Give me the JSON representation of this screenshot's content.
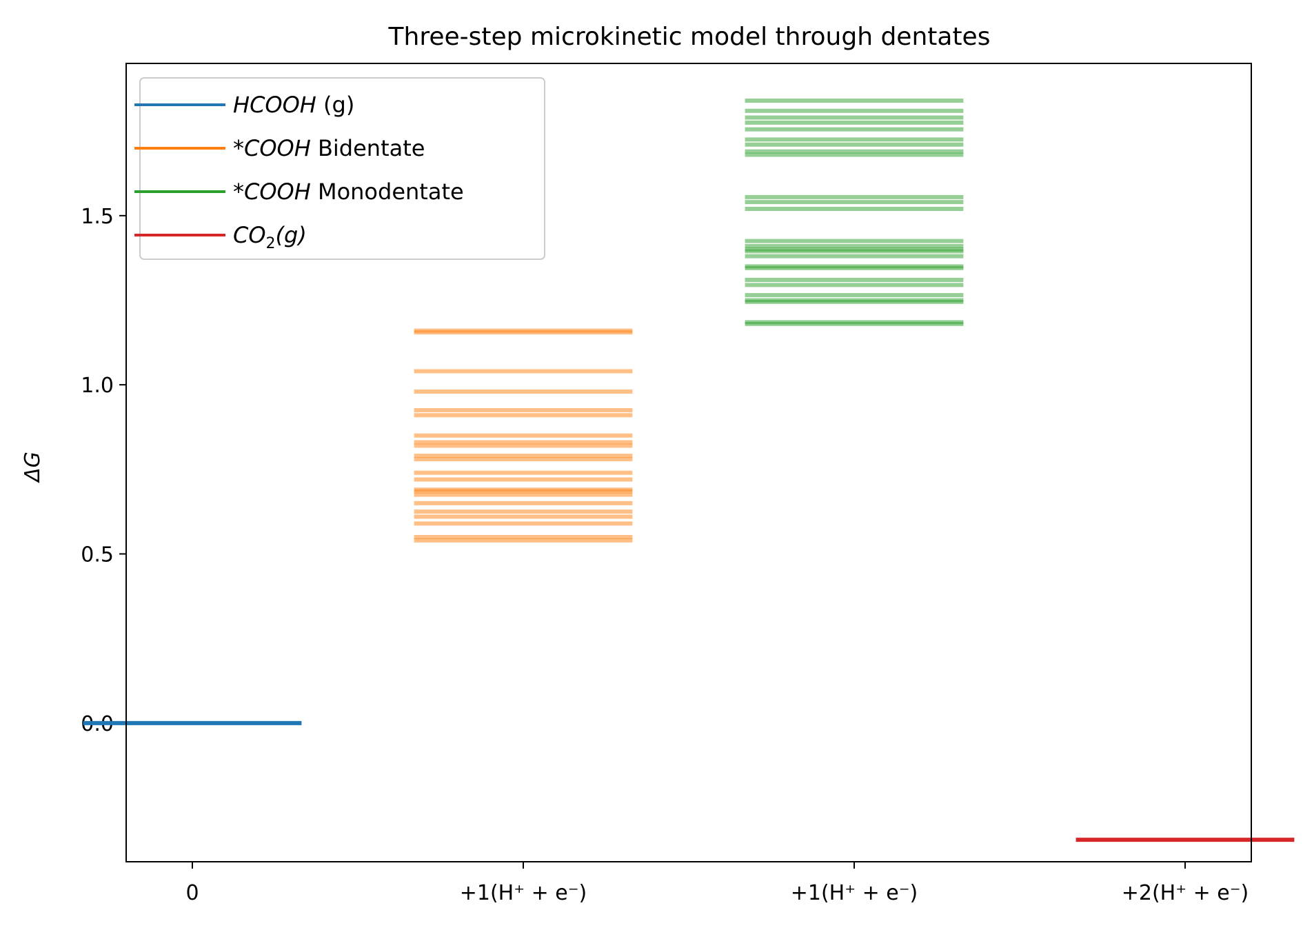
{
  "chart_data": {
    "type": "energy-level-diagram",
    "title": "Three-step microkinetic model through dentates",
    "xlabel": "",
    "ylabel": "ΔG",
    "ylim": [
      -0.41,
      1.95
    ],
    "xlim": [
      -0.2,
      3.2
    ],
    "x_ticks": [
      {
        "x": 0,
        "label": "0"
      },
      {
        "x": 1,
        "label": "+1(H⁺ + e⁻)"
      },
      {
        "x": 2,
        "label": "+1(H⁺ + e⁻)"
      },
      {
        "x": 3,
        "label": "+2(H⁺ + e⁻)"
      }
    ],
    "y_ticks": [
      0.0,
      0.5,
      1.0,
      1.5
    ],
    "y_tick_labels": [
      "0.0",
      "0.5",
      "1.0",
      "1.5"
    ],
    "legend_position": "upper-left",
    "series": [
      {
        "name": "HCOOH (g)",
        "color": "#1f77b4",
        "x": 0,
        "alpha": 1.0,
        "values": [
          0.0
        ]
      },
      {
        "name": "*COOH Bidentate",
        "color": "#ff7f0e",
        "x": 1,
        "alpha": 0.5,
        "values": [
          1.16,
          1.155,
          1.04,
          0.98,
          0.925,
          0.91,
          0.85,
          0.83,
          0.82,
          0.79,
          0.78,
          0.74,
          0.72,
          0.69,
          0.685,
          0.675,
          0.65,
          0.625,
          0.61,
          0.59,
          0.55,
          0.54
        ]
      },
      {
        "name": "*COOH Monodentate",
        "color": "#2ca02c",
        "x": 2,
        "alpha": 0.5,
        "values": [
          1.84,
          1.81,
          1.79,
          1.775,
          1.755,
          1.725,
          1.71,
          1.69,
          1.68,
          1.555,
          1.54,
          1.52,
          1.425,
          1.41,
          1.4,
          1.395,
          1.38,
          1.35,
          1.345,
          1.31,
          1.295,
          1.265,
          1.25,
          1.245,
          1.185,
          1.18
        ]
      },
      {
        "name": "CO2(g)",
        "color": "#d62728",
        "x": 3,
        "alpha": 1.0,
        "values": [
          -0.345
        ]
      }
    ]
  },
  "legend": [
    {
      "italic": "HCOOH",
      "rest": " (g)",
      "color": "#1f77b4"
    },
    {
      "italic": "*COOH",
      "rest": " Bidentate",
      "color": "#ff7f0e"
    },
    {
      "italic": "*COOH",
      "rest": " Monodentate",
      "color": "#2ca02c"
    },
    {
      "italic": "CO",
      "sub": "2",
      "italic2": "(g)",
      "color": "#d62728"
    }
  ]
}
